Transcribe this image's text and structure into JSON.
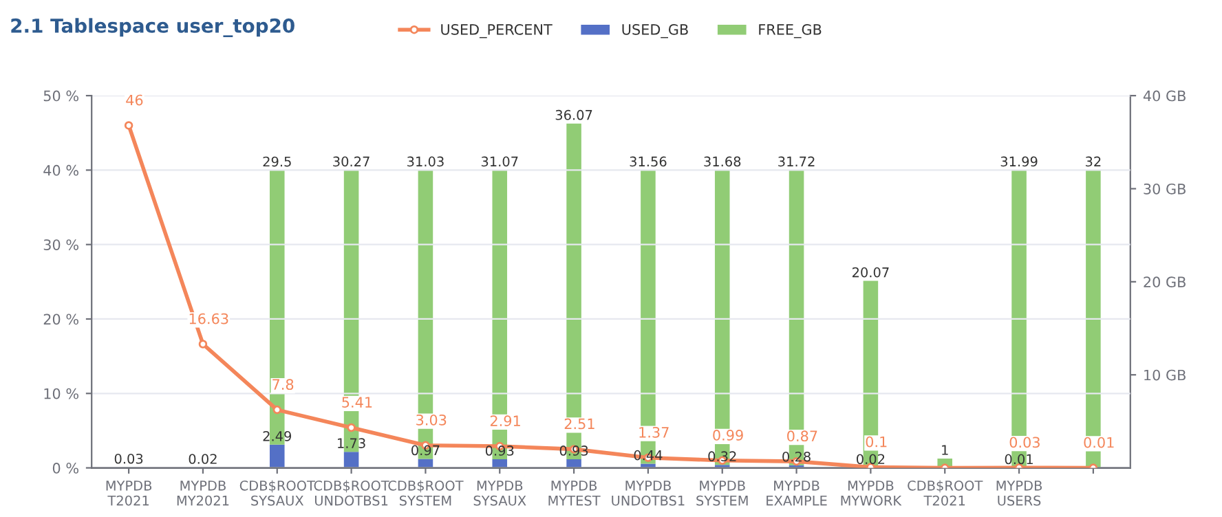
{
  "chart_data": {
    "type": "bar",
    "title": "2.1 Tablespace user_top20",
    "categories": [
      "MYPDB\nT2021",
      "MYPDB\nMY2021",
      "CDB$ROOT\nSYSAUX",
      "CDB$ROOT\nUNDOTBS1",
      "CDB$ROOT\nSYSTEM",
      "MYPDB\nSYSAUX",
      "MYPDB\nMYTEST",
      "MYPDB\nUNDOTBS1",
      "MYPDB\nSYSTEM",
      "MYPDB\nEXAMPLE",
      "MYPDB\nMYWORK",
      "CDB$ROOT\nT2021",
      "MYPDB\nUSERS",
      null
    ],
    "series": [
      {
        "name": "USED_PERCENT",
        "type": "line",
        "color": "#f4865a",
        "marker": "circle",
        "values": [
          46,
          16.63,
          7.8,
          5.41,
          3.03,
          2.91,
          2.51,
          1.37,
          0.99,
          0.87,
          0.1,
          0,
          0.03,
          0.01
        ],
        "value_labels": [
          "46",
          "16.63",
          "7.8",
          "5.41",
          "3.03",
          "2.91",
          "2.51",
          "1.37",
          "0.99",
          "0.87",
          "0.1",
          null,
          "0.03",
          "0.01"
        ]
      },
      {
        "name": "USED_GB",
        "axis": "y2",
        "color": "#5470c6",
        "values": [
          0.03,
          0.02,
          2.49,
          1.73,
          0.97,
          0.93,
          0.93,
          0.44,
          0.32,
          0.28,
          0.02,
          0,
          0.01,
          0
        ],
        "value_labels": [
          null,
          null,
          "2.49",
          "1.73",
          "0.97",
          "0.93",
          "0.93",
          "0.44",
          "0.32",
          "0.28",
          "0.02",
          null,
          "0.01",
          null
        ]
      },
      {
        "name": "FREE_GB",
        "axis": "y2",
        "color": "#91cc75",
        "values": [
          0.03,
          0.02,
          29.5,
          30.27,
          31.03,
          31.07,
          36.07,
          31.56,
          31.68,
          31.72,
          20.07,
          1,
          31.99,
          32
        ],
        "value_labels": [
          "0.03",
          "0.02",
          "29.5",
          "30.27",
          "31.03",
          "31.07",
          "36.07",
          "31.56",
          "31.68",
          "31.72",
          "20.07",
          "1",
          "31.99",
          "32"
        ]
      }
    ],
    "stacked": true,
    "ylim": [
      0,
      50
    ],
    "yticks": [
      {
        "value": 0,
        "label": "0 %"
      },
      {
        "value": 10,
        "label": "10 %"
      },
      {
        "value": 20,
        "label": "20 %"
      },
      {
        "value": 30,
        "label": "30 %"
      },
      {
        "value": 40,
        "label": "40 %"
      },
      {
        "value": 50,
        "label": "50 %"
      }
    ],
    "y2lim": [
      0,
      40
    ],
    "y2ticks": [
      {
        "value": 10,
        "label": "10 GB"
      },
      {
        "value": 20,
        "label": "20 GB"
      },
      {
        "value": 30,
        "label": "30 GB"
      },
      {
        "value": 40,
        "label": "40 GB"
      }
    ],
    "grid": "y",
    "legend": "top"
  }
}
